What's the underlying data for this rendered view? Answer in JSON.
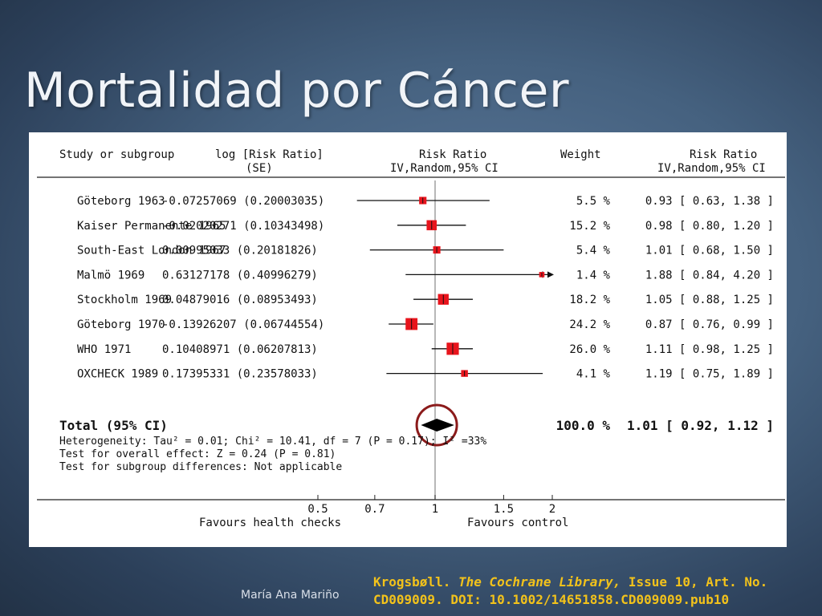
{
  "slide": {
    "title": "Mortalidad por Cáncer",
    "author": "María Ana Mariño",
    "citation": {
      "pre": "Krogsbøll. ",
      "journal": "The Cochrane Library,",
      "post": " Issue 10, Art. No. CD009009. DOI: 10.1002/14651858.CD009009.pub10"
    }
  },
  "colors": {
    "marker": "#e8141c",
    "circle": "#8b1a1a",
    "citation_text": "#f2c21b"
  },
  "chart_data": {
    "type": "forest",
    "headers": {
      "study": "Study or subgroup",
      "logrr_1": "log [Risk Ratio]",
      "logrr_2": "(SE)",
      "rr_plot_1": "Risk Ratio",
      "rr_plot_2": "IV,Random,95% CI",
      "weight": "Weight",
      "rr_text_1": "Risk Ratio",
      "rr_text_2": "IV,Random,95% CI"
    },
    "studies": [
      {
        "name": "Göteborg 1963",
        "logrr": "-0.07257069 (0.20003035)",
        "rr": 0.93,
        "lo": 0.63,
        "hi": 1.38,
        "weight": "5.5 %",
        "weight_pct": 5.5,
        "ci": "0.93 [ 0.63, 1.38 ]"
      },
      {
        "name": "Kaiser Permanente 1965",
        "logrr": "-0.02020271 (0.10343498)",
        "rr": 0.98,
        "lo": 0.8,
        "hi": 1.2,
        "weight": "15.2 %",
        "weight_pct": 15.2,
        "ci": "0.98 [ 0.80, 1.20 ]"
      },
      {
        "name": "South-East London 1967",
        "logrr": "0.00995033 (0.20181826)",
        "rr": 1.01,
        "lo": 0.68,
        "hi": 1.5,
        "weight": "5.4 %",
        "weight_pct": 5.4,
        "ci": "1.01 [ 0.68, 1.50 ]"
      },
      {
        "name": "Malmö 1969",
        "logrr": "0.63127178 (0.40996279)",
        "rr": 1.88,
        "lo": 0.84,
        "hi": 4.2,
        "weight": "1.4 %",
        "weight_pct": 1.4,
        "ci": "1.88 [ 0.84, 4.20 ]"
      },
      {
        "name": "Stockholm 1969",
        "logrr": "0.04879016 (0.08953493)",
        "rr": 1.05,
        "lo": 0.88,
        "hi": 1.25,
        "weight": "18.2 %",
        "weight_pct": 18.2,
        "ci": "1.05 [ 0.88, 1.25 ]"
      },
      {
        "name": "Göteborg 1970",
        "logrr": "-0.13926207 (0.06744554)",
        "rr": 0.87,
        "lo": 0.76,
        "hi": 0.99,
        "weight": "24.2 %",
        "weight_pct": 24.2,
        "ci": "0.87 [ 0.76, 0.99 ]"
      },
      {
        "name": "WHO 1971",
        "logrr": "0.10408971 (0.06207813)",
        "rr": 1.11,
        "lo": 0.98,
        "hi": 1.25,
        "weight": "26.0 %",
        "weight_pct": 26.0,
        "ci": "1.11 [ 0.98, 1.25 ]"
      },
      {
        "name": "OXCHECK 1989",
        "logrr": "0.17395331 (0.23578033)",
        "rr": 1.19,
        "lo": 0.75,
        "hi": 1.89,
        "weight": "4.1 %",
        "weight_pct": 4.1,
        "ci": "1.19 [ 0.75, 1.89 ]"
      }
    ],
    "total": {
      "label": "Total (95% CI)",
      "weight": "100.0 %",
      "ci": "1.01 [ 0.92, 1.12 ]",
      "rr": 1.01,
      "lo": 0.92,
      "hi": 1.12
    },
    "notes": [
      "Heterogeneity: Tau² = 0.01; Chi² = 10.41, df = 7 (P = 0.17); I² =33%",
      "Test for overall effect: Z = 0.24 (P = 0.81)",
      "Test for subgroup differences: Not applicable"
    ],
    "x_scale": "log",
    "xlim": [
      0.5,
      2
    ],
    "x_ticks": [
      "0.5",
      "0.7",
      "1",
      "1.5",
      "2"
    ],
    "x_tick_values": [
      0.5,
      0.7,
      1,
      1.5,
      2
    ],
    "favours_left": "Favours health checks",
    "favours_right": "Favours control"
  }
}
